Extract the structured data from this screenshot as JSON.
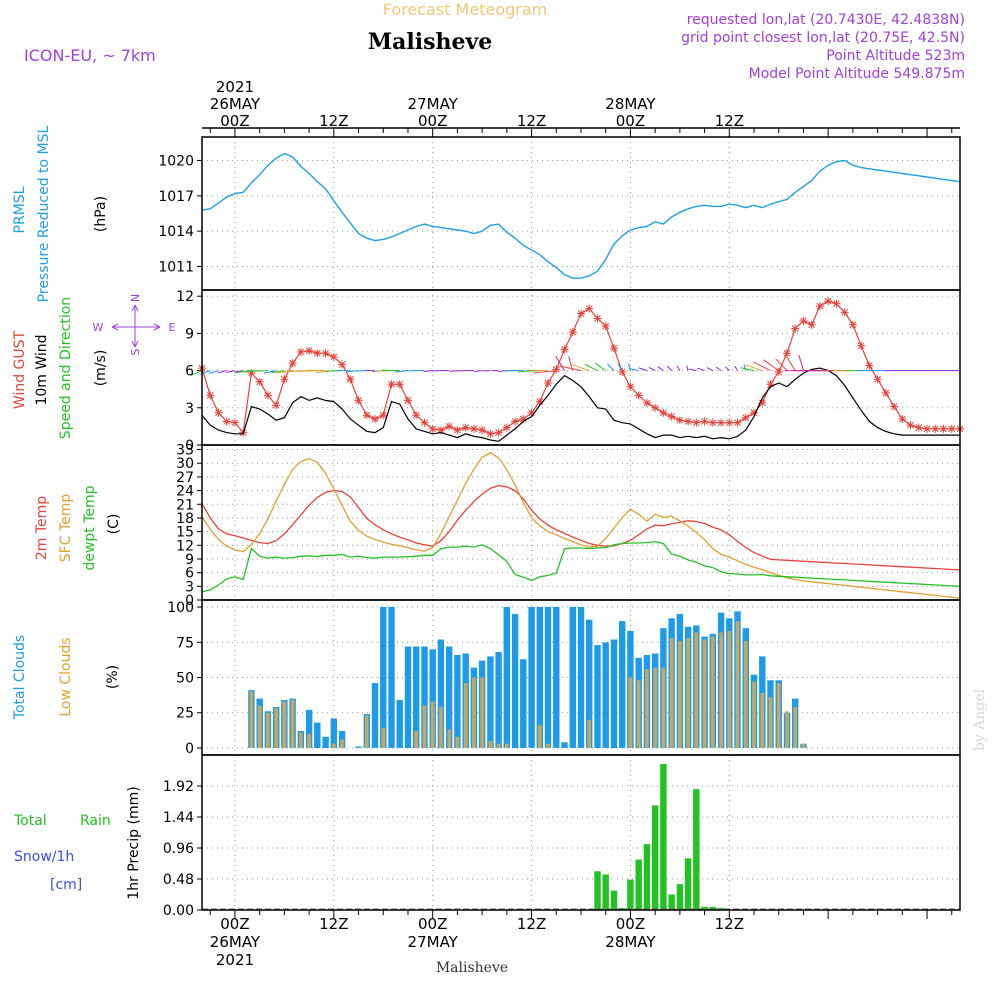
{
  "header": {
    "forecast_title": "Forecast Meteogram",
    "location": "Malisheve",
    "model": "ICON-EU, ~ 7km",
    "requested": "requested lon,lat (20.7430E, 42.4838N)",
    "grid_point": "grid point closest lon,lat (20.75E, 42.5N)",
    "point_alt": "Point Altitude 523m",
    "model_alt": "Model Point Altitude 549.875m",
    "watermark": "by Angel",
    "footer_location": "Malisheve"
  },
  "time_axis": {
    "top_labels": [
      {
        "l1": "2021",
        "l2": "26MAY",
        "l3": "00Z",
        "h": 0
      },
      {
        "l1": "",
        "l2": "",
        "l3": "12Z",
        "h": 12
      },
      {
        "l1": "",
        "l2": "27MAY",
        "l3": "00Z",
        "h": 24
      },
      {
        "l1": "",
        "l2": "",
        "l3": "12Z",
        "h": 36
      },
      {
        "l1": "",
        "l2": "28MAY",
        "l3": "00Z",
        "h": 48
      },
      {
        "l1": "",
        "l2": "",
        "l3": "12Z",
        "h": 60
      }
    ],
    "bottom_labels": [
      {
        "l1": "00Z",
        "l2": "26MAY",
        "l3": "2021",
        "h": 0
      },
      {
        "l1": "12Z",
        "l2": "",
        "l3": "",
        "h": 12
      },
      {
        "l1": "00Z",
        "l2": "27MAY",
        "l3": "",
        "h": 24
      },
      {
        "l1": "12Z",
        "l2": "",
        "l3": "",
        "h": 36
      },
      {
        "l1": "00Z",
        "l2": "28MAY",
        "l3": "",
        "h": 48
      },
      {
        "l1": "12Z",
        "l2": "",
        "l3": "",
        "h": 60
      }
    ]
  },
  "labels": {
    "p1": {
      "a": "PRMSL",
      "b": "Pressure Reduced to MSL",
      "unit": "(hPa)"
    },
    "p2": {
      "a": "Wind GUST",
      "b": "10m Wind",
      "c": "Speed and Direction",
      "unit": "(m/s)",
      "compass_w": "W",
      "compass_e": "E",
      "compass_n": "N",
      "compass_s": "S"
    },
    "p3": {
      "a": "2m Temp",
      "b": "SFC Temp",
      "c": "dewpt Temp",
      "unit": "(C)"
    },
    "p4": {
      "a": "Total Clouds",
      "b": "Low Clouds",
      "unit": "(%)"
    },
    "p5": {
      "a": "Total",
      "a2": "Rain",
      "b": "Snow/1h",
      "c": "[cm]",
      "unit": "1hr Precip (mm)"
    }
  },
  "colors": {
    "pressure": "#1ea0e6",
    "gust": "#e8433b",
    "wind": "#000000",
    "temp": "#e8433b",
    "sfc_temp": "#e0a030",
    "dewpoint": "#22c222",
    "total_clouds": "#1e9be8",
    "low_clouds": "#c8a860",
    "rain": "#22c222",
    "snow": "#3a4ee8",
    "purple": "#a040d8",
    "title_orange": "#f0c878"
  },
  "chart_data": [
    {
      "type": "line",
      "name": "PRMSL",
      "ylim": [
        1009,
        1022
      ],
      "yticks": [
        1011,
        1014,
        1017,
        1020
      ],
      "x_hours": [
        -4,
        -3,
        -2,
        -1,
        0,
        1,
        2,
        3,
        4,
        5,
        6,
        7,
        8,
        9,
        10,
        11,
        12,
        13,
        14,
        15,
        16,
        17,
        18,
        19,
        20,
        21,
        22,
        23,
        24,
        25,
        26,
        27,
        28,
        29,
        30,
        31,
        32,
        33,
        34,
        35,
        36,
        37,
        38,
        39,
        40,
        41,
        42,
        43,
        44,
        45,
        46,
        47,
        48,
        49,
        50,
        51,
        52,
        53,
        54,
        55,
        56,
        57,
        58,
        59,
        60,
        61,
        62,
        63,
        64,
        65,
        66,
        67,
        68,
        69,
        70,
        71,
        72,
        73,
        74,
        75,
        76,
        77,
        78,
        79,
        80,
        81,
        82,
        83,
        84,
        85,
        86,
        87,
        88
      ],
      "values": [
        1015.8,
        1015.9,
        1016.4,
        1016.9,
        1017.2,
        1017.3,
        1018.1,
        1018.8,
        1019.6,
        1020.2,
        1020.6,
        1020.3,
        1019.5,
        1018.9,
        1018.2,
        1017.6,
        1016.6,
        1015.6,
        1014.7,
        1013.8,
        1013.4,
        1013.2,
        1013.3,
        1013.5,
        1013.8,
        1014.1,
        1014.4,
        1014.6,
        1014.4,
        1014.3,
        1014.2,
        1014.1,
        1014.0,
        1013.8,
        1014.0,
        1014.5,
        1014.6,
        1013.9,
        1013.4,
        1012.8,
        1012.4,
        1012.0,
        1011.4,
        1010.9,
        1010.3,
        1010.0,
        1010.0,
        1010.2,
        1010.6,
        1011.6,
        1012.9,
        1013.6,
        1014.1,
        1014.3,
        1014.4,
        1014.8,
        1014.6,
        1015.2,
        1015.6,
        1015.9,
        1016.1,
        1016.2,
        1016.1,
        1016.1,
        1016.3,
        1016.2,
        1016.0,
        1016.2,
        1016.0,
        1016.3,
        1016.5,
        1016.7,
        1017.3,
        1017.8,
        1018.3,
        1019.1,
        1019.6,
        1019.9,
        1020.0,
        1019.6,
        1019.4,
        1019.3,
        1019.2,
        1019.1,
        1019.0,
        1018.9,
        1018.8,
        1018.7,
        1018.6,
        1018.5,
        1018.4,
        1018.3,
        1018.2
      ]
    },
    {
      "type": "line",
      "name": "Wind",
      "ylim": [
        0,
        12.5
      ],
      "yticks": [
        0,
        3,
        6,
        9,
        12
      ],
      "x_hours": [
        -4,
        -3,
        -2,
        -1,
        0,
        1,
        2,
        3,
        4,
        5,
        6,
        7,
        8,
        9,
        10,
        11,
        12,
        13,
        14,
        15,
        16,
        17,
        18,
        19,
        20,
        21,
        22,
        23,
        24,
        25,
        26,
        27,
        28,
        29,
        30,
        31,
        32,
        33,
        34,
        35,
        36,
        37,
        38,
        39,
        40,
        41,
        42,
        43,
        44,
        45,
        46,
        47,
        48,
        49,
        50,
        51,
        52,
        53,
        54,
        55,
        56,
        57,
        58,
        59,
        60,
        61,
        62,
        63,
        64,
        65,
        66,
        67,
        68,
        69,
        70,
        71,
        72,
        73,
        74,
        75,
        76,
        77,
        78,
        79,
        80,
        81,
        82,
        83,
        84,
        85,
        86,
        87,
        88
      ],
      "gust": [
        6.2,
        4.0,
        2.6,
        1.9,
        1.8,
        1.0,
        5.8,
        5.1,
        4.0,
        3.2,
        5.3,
        6.6,
        7.5,
        7.6,
        7.4,
        7.4,
        7.1,
        6.5,
        5.3,
        3.6,
        2.4,
        2.1,
        2.4,
        4.9,
        4.9,
        3.6,
        2.4,
        1.8,
        1.3,
        1.2,
        1.5,
        1.2,
        1.4,
        1.3,
        1.2,
        0.9,
        1.0,
        1.4,
        1.9,
        2.1,
        2.6,
        3.5,
        5.0,
        6.1,
        7.7,
        9.1,
        10.6,
        11.0,
        10.2,
        9.6,
        7.8,
        5.9,
        4.7,
        4.0,
        3.4,
        3.0,
        2.6,
        2.3,
        2.0,
        1.9,
        1.8,
        1.9,
        1.8,
        1.8,
        1.8,
        1.8,
        2.2,
        2.6,
        3.4,
        4.9,
        5.9,
        7.4,
        9.4,
        10.0,
        9.7,
        11.2,
        11.6,
        11.4,
        10.7,
        9.7,
        8.0,
        6.4,
        5.3,
        4.2,
        3.1,
        2.1,
        1.6,
        1.4,
        1.3,
        1.3,
        1.3,
        1.3,
        1.3
      ],
      "wind": [
        2.4,
        1.6,
        1.2,
        1.0,
        0.9,
        0.9,
        3.1,
        2.9,
        2.5,
        2.0,
        2.2,
        3.4,
        3.9,
        3.6,
        3.8,
        3.6,
        3.5,
        2.9,
        2.1,
        1.6,
        1.1,
        1.0,
        1.4,
        3.5,
        3.3,
        2.1,
        1.3,
        1.1,
        0.9,
        1.0,
        0.8,
        0.6,
        0.9,
        0.7,
        0.6,
        0.4,
        0.3,
        0.8,
        1.3,
        1.9,
        2.3,
        3.2,
        4.0,
        4.9,
        5.6,
        5.2,
        4.7,
        3.9,
        3.0,
        2.9,
        2.0,
        1.8,
        1.7,
        1.3,
        0.9,
        0.6,
        0.8,
        0.8,
        0.6,
        0.7,
        0.6,
        0.7,
        0.5,
        0.6,
        0.5,
        0.7,
        1.2,
        2.3,
        3.8,
        4.7,
        5.0,
        4.7,
        5.3,
        5.8,
        6.1,
        6.2,
        6.0,
        5.6,
        4.8,
        3.8,
        2.8,
        1.9,
        1.4,
        1.1,
        0.9,
        0.8,
        0.8,
        0.8,
        0.8,
        0.8,
        0.8,
        0.8,
        0.8
      ]
    },
    {
      "type": "line",
      "name": "Temperature",
      "ylim": [
        0,
        34
      ],
      "yticks": [
        0,
        3,
        6,
        9,
        12,
        15,
        18,
        21,
        24,
        27,
        30,
        33
      ],
      "x_hours": [
        -4,
        -3,
        -2,
        -1,
        0,
        1,
        2,
        3,
        4,
        5,
        6,
        7,
        8,
        9,
        10,
        11,
        12,
        13,
        14,
        15,
        16,
        17,
        18,
        19,
        20,
        21,
        22,
        23,
        24,
        25,
        26,
        27,
        28,
        29,
        30,
        31,
        32,
        33,
        34,
        35,
        36,
        37,
        38,
        39,
        40,
        41,
        42,
        43,
        44,
        45,
        46,
        47,
        48,
        49,
        50,
        51,
        52,
        53,
        54,
        55,
        56,
        57,
        58,
        59,
        60,
        61,
        62,
        63,
        64,
        65,
        66,
        67,
        68,
        69,
        70,
        71,
        72,
        73,
        74,
        75,
        76,
        77,
        78,
        79,
        80,
        81,
        82,
        83,
        84,
        85,
        86,
        87,
        88
      ],
      "temp_2m": [
        21.2,
        18.0,
        15.6,
        14.5,
        14.1,
        13.6,
        13.1,
        12.6,
        12.4,
        13.0,
        14.5,
        16.5,
        18.7,
        20.8,
        22.5,
        23.6,
        24.0,
        23.8,
        22.6,
        20.3,
        17.9,
        16.5,
        15.4,
        14.5,
        13.8,
        13.2,
        12.5,
        12.1,
        11.8,
        13.0,
        15.0,
        17.5,
        19.7,
        21.6,
        23.2,
        24.5,
        25.1,
        24.8,
        24.0,
        22.2,
        19.7,
        17.8,
        16.4,
        15.4,
        14.6,
        13.8,
        13.1,
        12.4,
        12.0,
        11.8,
        11.9,
        12.4,
        13.1,
        14.3,
        15.6,
        16.4,
        16.3,
        16.7,
        17.0,
        17.4,
        17.2,
        16.8,
        16.0,
        15.4,
        14.3,
        12.9,
        11.5,
        10.4,
        9.6,
        8.9,
        8.8,
        8.7,
        8.6,
        8.5,
        8.4,
        8.3,
        8.2,
        8.1,
        8.0,
        7.9,
        7.8,
        7.7,
        7.6,
        7.5,
        7.4,
        7.3,
        7.2,
        7.1,
        7.0,
        6.9,
        6.8,
        6.7,
        6.6
      ],
      "sfc_temp": [
        18.3,
        15.5,
        13.3,
        11.8,
        11.0,
        10.6,
        12.2,
        14.6,
        17.8,
        21.7,
        25.4,
        28.6,
        30.4,
        31.0,
        30.2,
        27.8,
        24.4,
        20.7,
        17.3,
        15.3,
        14.0,
        13.3,
        12.7,
        12.2,
        11.9,
        11.5,
        11.0,
        10.7,
        11.5,
        14.6,
        18.3,
        21.9,
        25.6,
        28.7,
        31.3,
        32.3,
        31.2,
        28.6,
        25.2,
        21.4,
        18.0,
        16.3,
        15.0,
        14.3,
        13.5,
        12.8,
        12.1,
        11.6,
        11.8,
        13.5,
        15.8,
        18.1,
        19.9,
        18.8,
        17.3,
        18.8,
        18.1,
        18.4,
        17.3,
        16.2,
        14.8,
        13.2,
        11.3,
        10.0,
        9.4,
        8.6,
        7.8,
        7.2,
        6.6,
        6.0,
        5.4,
        4.9,
        4.5,
        4.2,
        4.0,
        3.8,
        3.6,
        3.4,
        3.2,
        3.0,
        2.8,
        2.6,
        2.4,
        2.2,
        2.0,
        1.8,
        1.6,
        1.4,
        1.2,
        1.0,
        0.8,
        0.6,
        0.4
      ],
      "dewpoint": [
        1.8,
        2.2,
        3.3,
        4.6,
        5.1,
        4.5,
        11.3,
        9.6,
        9.2,
        9.4,
        9.2,
        9.3,
        9.6,
        9.7,
        9.5,
        9.8,
        9.8,
        10.0,
        9.4,
        9.6,
        9.3,
        9.2,
        9.4,
        9.4,
        9.4,
        9.5,
        9.6,
        9.8,
        9.8,
        11.2,
        11.6,
        11.6,
        11.8,
        11.6,
        12.1,
        11.3,
        9.9,
        8.5,
        5.6,
        5.0,
        4.3,
        5.1,
        5.4,
        5.9,
        11.2,
        11.4,
        11.4,
        11.3,
        11.4,
        11.5,
        12.1,
        12.4,
        12.5,
        12.5,
        12.6,
        12.8,
        12.4,
        10.1,
        9.6,
        8.8,
        8.3,
        7.5,
        7.1,
        6.2,
        5.8,
        5.7,
        5.5,
        5.5,
        5.6,
        5.3,
        5.2,
        5.1,
        5.0,
        4.9,
        4.8,
        4.7,
        4.6,
        4.5,
        4.4,
        4.3,
        4.2,
        4.1,
        4.0,
        3.9,
        3.8,
        3.7,
        3.6,
        3.5,
        3.4,
        3.3,
        3.2,
        3.1,
        3.0
      ]
    },
    {
      "type": "bar",
      "name": "Clouds",
      "ylim": [
        -5,
        105
      ],
      "yticks": [
        0,
        25,
        50,
        75,
        100
      ],
      "x_hours": [
        -4,
        -3,
        -2,
        -1,
        0,
        1,
        2,
        3,
        4,
        5,
        6,
        7,
        8,
        9,
        10,
        11,
        12,
        13,
        14,
        15,
        16,
        17,
        18,
        19,
        20,
        21,
        22,
        23,
        24,
        25,
        26,
        27,
        28,
        29,
        30,
        31,
        32,
        33,
        34,
        35,
        36,
        37,
        38,
        39,
        40,
        41,
        42,
        43,
        44,
        45,
        46,
        47,
        48,
        49,
        50,
        51,
        52,
        53,
        54,
        55,
        56,
        57,
        58,
        59,
        60,
        61,
        62,
        63,
        64,
        65,
        66,
        67,
        68,
        69,
        70,
        71,
        72,
        73,
        74,
        75,
        76,
        77,
        78,
        79,
        80,
        81,
        82,
        83,
        84,
        85,
        86,
        87,
        88
      ],
      "total_clouds": [
        0,
        0,
        0,
        0,
        0,
        0,
        41,
        35,
        26,
        29,
        34,
        35,
        12,
        27,
        18,
        8,
        21,
        12,
        0,
        1,
        24,
        46,
        100,
        100,
        34,
        72,
        72,
        72,
        70,
        77,
        72,
        66,
        67,
        57,
        62,
        65,
        68,
        100,
        95,
        63,
        100,
        100,
        100,
        100,
        4,
        100,
        100,
        91,
        73,
        75,
        77,
        90,
        83,
        64,
        66,
        67,
        85,
        92,
        95,
        86,
        87,
        79,
        81,
        96,
        92,
        97,
        85,
        52,
        65,
        48,
        48,
        25,
        35,
        3,
        0,
        0,
        0,
        0,
        0,
        0,
        0,
        0,
        0,
        0,
        0,
        0,
        0,
        0,
        0,
        0,
        0,
        0,
        0
      ],
      "low_clouds": [
        0,
        0,
        0,
        0,
        0,
        0,
        40,
        30,
        25,
        28,
        33,
        34,
        11,
        10,
        0,
        0,
        3,
        6,
        0,
        0,
        23,
        0,
        14,
        0,
        0,
        0,
        12,
        30,
        33,
        29,
        13,
        8,
        46,
        50,
        50,
        5,
        3,
        3,
        0,
        0,
        0,
        16,
        3,
        0,
        0,
        0,
        0,
        20,
        0,
        0,
        0,
        0,
        50,
        48,
        56,
        57,
        57,
        78,
        76,
        78,
        82,
        77,
        79,
        82,
        83,
        90,
        76,
        47,
        39,
        36,
        46,
        26,
        29,
        3,
        0,
        0,
        0,
        0,
        0,
        0,
        0,
        0,
        0,
        0,
        0,
        0,
        0,
        0,
        0,
        0,
        0,
        0,
        0
      ]
    },
    {
      "type": "bar",
      "name": "Precipitation",
      "ylim": [
        0,
        2.4
      ],
      "yticks": [
        0,
        0.48,
        0.96,
        1.44,
        1.92
      ],
      "x_hours": [
        44,
        45,
        46,
        47,
        48,
        49,
        50,
        51,
        52,
        53,
        54,
        55,
        56,
        57,
        58,
        59,
        60,
        61
      ],
      "values": [
        0.6,
        0.55,
        0.3,
        0.03,
        0.47,
        0.78,
        1.02,
        1.62,
        2.26,
        0.24,
        0.4,
        0.8,
        1.87,
        0.05,
        0.05,
        0.03,
        0.0,
        0.0
      ]
    }
  ]
}
